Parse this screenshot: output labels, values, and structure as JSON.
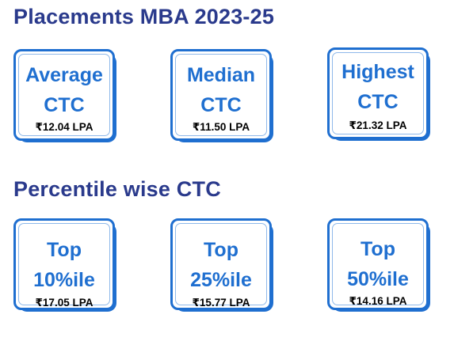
{
  "placements": {
    "title": "Placements MBA 2023-25",
    "cards": [
      {
        "line1": "Average",
        "line2": "CTC",
        "value": "₹12.04 LPA"
      },
      {
        "line1": "Median",
        "line2": "CTC",
        "value": "₹11.50 LPA"
      },
      {
        "line1": "Highest",
        "line2": "CTC",
        "value": "₹21.32 LPA"
      }
    ]
  },
  "percentile": {
    "title": "Percentile wise CTC",
    "cards": [
      {
        "line1": "Top",
        "line2": "10%ile",
        "value": "₹17.05 LPA"
      },
      {
        "line1": "Top",
        "line2": "25%ile",
        "value": "₹15.77 LPA"
      },
      {
        "line1": "Top",
        "line2": "50%ile",
        "value": "₹14.16 LPA"
      }
    ]
  },
  "colors": {
    "heading": "#2a3a8c",
    "accent": "#1f6fd0",
    "value_text": "#000000"
  }
}
